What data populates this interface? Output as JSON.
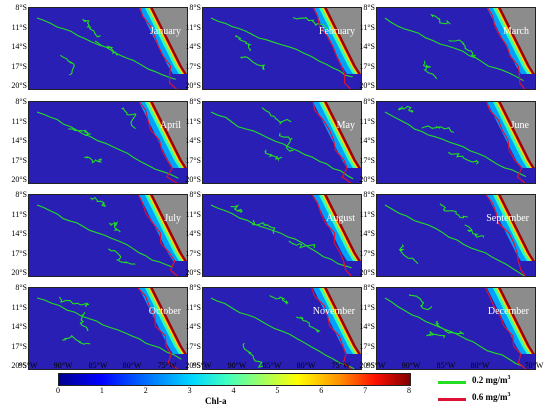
{
  "figure": {
    "months": [
      "January",
      "February",
      "March",
      "April",
      "May",
      "June",
      "July",
      "August",
      "September",
      "October",
      "November",
      "December"
    ],
    "y_ticks": [
      "8°S",
      "11°S",
      "14°S",
      "17°S",
      "20°S"
    ],
    "x_ticks": [
      "95°W",
      "90°W",
      "85°W",
      "80°W",
      "75°W",
      "70°W"
    ],
    "colorbar": {
      "label": "Chl-a",
      "ticks": [
        "0",
        "1",
        "2",
        "3",
        "4",
        "5",
        "6",
        "7",
        "8"
      ],
      "range": [
        0,
        8
      ]
    },
    "legend": [
      {
        "label": "0.2 mg/m",
        "sup": "3",
        "color": "#22dd22"
      },
      {
        "label": "0.6 mg/m",
        "sup": "3",
        "color": "#dd1133"
      }
    ],
    "colors": {
      "ocean": "#2a1fb5",
      "land": "#8c8c8c",
      "contour_low": "#22dd22",
      "contour_high": "#dd1133"
    }
  }
}
